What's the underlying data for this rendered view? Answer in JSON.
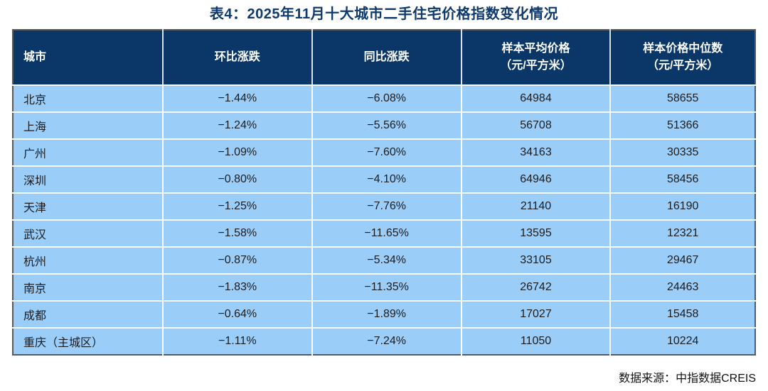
{
  "title": "表4：2025年11月十大城市二手住宅价格指数变化情况",
  "source_note": "数据来源：中指数据CREIS",
  "colors": {
    "header_bg": "#0A3768",
    "header_text": "#FFFFFF",
    "row_bg": "#9BCDF9",
    "title_color": "#0E3A6E",
    "outer_border": "#595A5E",
    "cell_divider": "#F4FAFF",
    "body_text": "#1C1C1E"
  },
  "table": {
    "columns": [
      {
        "key": "city",
        "label": "城市",
        "label2": ""
      },
      {
        "key": "mom",
        "label": "环比涨跌",
        "label2": ""
      },
      {
        "key": "yoy",
        "label": "同比涨跌",
        "label2": ""
      },
      {
        "key": "avg_price",
        "label": "样本平均价格",
        "label2": "（元/平方米）"
      },
      {
        "key": "median_price",
        "label": "样本价格中位数",
        "label2": "（元/平方米）"
      }
    ],
    "rows": [
      {
        "city": "北京",
        "mom": "−1.44%",
        "yoy": "−6.08%",
        "avg_price": "64984",
        "median_price": "58655"
      },
      {
        "city": "上海",
        "mom": "−1.24%",
        "yoy": "−5.56%",
        "avg_price": "56708",
        "median_price": "51366"
      },
      {
        "city": "广州",
        "mom": "−1.09%",
        "yoy": "−7.60%",
        "avg_price": "34163",
        "median_price": "30335"
      },
      {
        "city": "深圳",
        "mom": "−0.80%",
        "yoy": "−4.10%",
        "avg_price": "64946",
        "median_price": "58456"
      },
      {
        "city": "天津",
        "mom": "−1.25%",
        "yoy": "−7.76%",
        "avg_price": "21140",
        "median_price": "16190"
      },
      {
        "city": "武汉",
        "mom": "−1.58%",
        "yoy": "−11.65%",
        "avg_price": "13595",
        "median_price": "12321"
      },
      {
        "city": "杭州",
        "mom": "−0.87%",
        "yoy": "−5.34%",
        "avg_price": "33105",
        "median_price": "29467"
      },
      {
        "city": "南京",
        "mom": "−1.83%",
        "yoy": "−11.35%",
        "avg_price": "26742",
        "median_price": "24463"
      },
      {
        "city": "成都",
        "mom": "−0.64%",
        "yoy": "−1.89%",
        "avg_price": "17027",
        "median_price": "15458"
      },
      {
        "city": "重庆（主城区）",
        "mom": "−1.11%",
        "yoy": "−7.24%",
        "avg_price": "11050",
        "median_price": "10224"
      }
    ]
  }
}
